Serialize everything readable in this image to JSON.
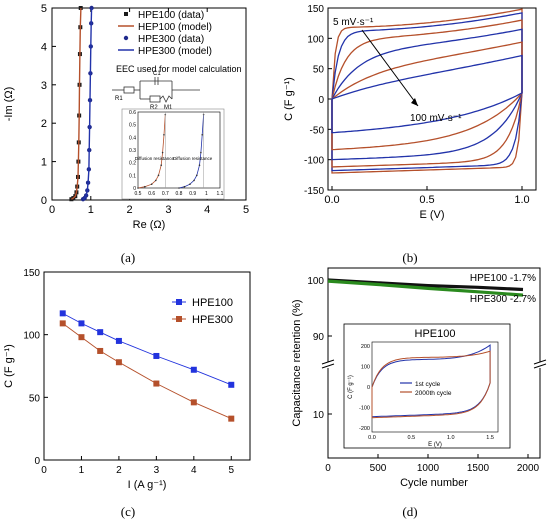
{
  "chart_data": [
    {
      "panel": "(a)",
      "type": "scatter",
      "xlabel": "Re (Ω)",
      "ylabel": "-Im (Ω)",
      "xlim": [
        0,
        5
      ],
      "ylim": [
        0,
        5
      ],
      "xticks": [
        "0",
        "1",
        "2",
        "3",
        "4",
        "5"
      ],
      "yticks": [
        "0",
        "1",
        "2",
        "3",
        "4",
        "5"
      ],
      "legend_position": "top-right",
      "series": [
        {
          "name": "HPE100 (data)",
          "color": "#1a1a1a",
          "marker": "square",
          "x": [
            0.5,
            0.55,
            0.6,
            0.63,
            0.65,
            0.67,
            0.68,
            0.69,
            0.7,
            0.71,
            0.72,
            0.73,
            0.74
          ],
          "y": [
            0.02,
            0.05,
            0.1,
            0.2,
            0.35,
            0.6,
            1.0,
            1.5,
            2.2,
            3.0,
            3.8,
            4.5,
            5.0
          ]
        },
        {
          "name": "HEP100 (model)",
          "color": "#b5502b",
          "marker": "line",
          "x": [
            0.5,
            0.55,
            0.6,
            0.63,
            0.65,
            0.67,
            0.68,
            0.69,
            0.7,
            0.71,
            0.72,
            0.73,
            0.745
          ],
          "y": [
            0.02,
            0.05,
            0.1,
            0.2,
            0.35,
            0.6,
            1.0,
            1.5,
            2.2,
            3.0,
            3.8,
            4.5,
            5.0
          ]
        },
        {
          "name": "HPE300 (data)",
          "color": "#1f2a8c",
          "marker": "circle",
          "x": [
            0.8,
            0.84,
            0.88,
            0.91,
            0.93,
            0.95,
            0.96,
            0.97,
            0.98,
            0.99,
            1.0,
            1.01,
            1.02
          ],
          "y": [
            0.02,
            0.05,
            0.12,
            0.25,
            0.45,
            0.8,
            1.3,
            1.9,
            2.6,
            3.3,
            4.0,
            4.6,
            5.0
          ]
        },
        {
          "name": "HPE300 (model)",
          "color": "#2233aa",
          "marker": "line",
          "x": [
            0.8,
            0.84,
            0.88,
            0.91,
            0.93,
            0.95,
            0.96,
            0.97,
            0.98,
            0.99,
            1.0,
            1.01,
            1.02
          ],
          "y": [
            0.02,
            0.05,
            0.12,
            0.25,
            0.45,
            0.8,
            1.3,
            1.9,
            2.6,
            3.3,
            4.0,
            4.6,
            5.0
          ]
        }
      ],
      "annotation": "EEC used for model calculation",
      "circuit_labels": [
        "R1",
        "C1",
        "R2",
        "M1"
      ],
      "inset": {
        "xticks": [
          "0.5",
          "0.6",
          "0.7",
          "0.8",
          "0.9",
          "1",
          "1.1"
        ],
        "yticks": [
          "0",
          "0.1",
          "0.2",
          "0.3",
          "0.4",
          "0.5",
          "0.6"
        ],
        "xlim": [
          0.5,
          1.1
        ],
        "ylim": [
          0,
          0.6
        ],
        "labels": [
          "Diffusion resistance",
          "Diffusion resistance"
        ],
        "series": [
          {
            "color": "#b5502b",
            "x": [
              0.5,
              0.55,
              0.6,
              0.63,
              0.65,
              0.67,
              0.68,
              0.69,
              0.7
            ],
            "y": [
              0.0,
              0.01,
              0.03,
              0.06,
              0.1,
              0.18,
              0.28,
              0.42,
              0.58
            ]
          },
          {
            "color": "#2233aa",
            "x": [
              0.8,
              0.84,
              0.88,
              0.91,
              0.93,
              0.95,
              0.96,
              0.97,
              0.98
            ],
            "y": [
              0.0,
              0.01,
              0.03,
              0.06,
              0.1,
              0.18,
              0.28,
              0.42,
              0.58
            ]
          }
        ]
      }
    },
    {
      "panel": "(b)",
      "type": "line",
      "xlabel": "E (V)",
      "ylabel": "C (F g⁻¹)",
      "xlim": [
        0,
        1.0
      ],
      "ylim": [
        -150,
        150
      ],
      "xticks": [
        "0.0",
        "0.5",
        "1.0"
      ],
      "yticks": [
        "-150",
        "-100",
        "-50",
        "0",
        "50",
        "100",
        "150"
      ],
      "annotations": [
        "5 mV·s⁻¹",
        "100 mV·s⁻¹"
      ],
      "curves": [
        {
          "color": "#b5502b",
          "top": 118,
          "bottom": -122,
          "k": 60
        },
        {
          "color": "#2233aa",
          "top": 112,
          "bottom": -118,
          "k": 30
        },
        {
          "color": "#b5502b",
          "top": 100,
          "bottom": -112,
          "k": 14
        },
        {
          "color": "#2233aa",
          "top": 85,
          "bottom": -100,
          "k": 7
        },
        {
          "color": "#b5502b",
          "top": 65,
          "bottom": -85,
          "k": 4
        },
        {
          "color": "#2233aa",
          "top": 45,
          "bottom": -60,
          "k": 2.6
        }
      ]
    },
    {
      "panel": "(c)",
      "type": "line",
      "xlabel": "I (A g⁻¹)",
      "ylabel": "C (F g⁻¹)",
      "xlim": [
        0,
        5.5
      ],
      "ylim": [
        0,
        150
      ],
      "xticks": [
        "0",
        "1",
        "2",
        "3",
        "4",
        "5"
      ],
      "yticks": [
        "0",
        "50",
        "100",
        "150"
      ],
      "legend_position": "top-right",
      "x": [
        0.5,
        1,
        1.5,
        2,
        3,
        4,
        5
      ],
      "series": [
        {
          "name": "HPE100",
          "color": "#2233dd",
          "marker": "square",
          "values": [
            117,
            109,
            102,
            95,
            83,
            72,
            60
          ]
        },
        {
          "name": "HPE300",
          "color": "#b5502b",
          "marker": "square",
          "values": [
            109,
            98,
            87,
            78,
            61,
            46,
            33
          ]
        }
      ]
    },
    {
      "panel": "(d)",
      "type": "line",
      "xlabel": "Cycle number",
      "ylabel": "Capacitance retention (%)",
      "xlim": [
        0,
        2000
      ],
      "xticks": [
        "0",
        "500",
        "1000",
        "1500",
        "2000"
      ],
      "yticks": [
        "10",
        "90",
        "100"
      ],
      "series": [
        {
          "name": "HPE100",
          "label": "HPE100  -1.7%",
          "color": "#111111",
          "x": [
            0,
            500,
            1000,
            1500,
            1950
          ],
          "values": [
            100,
            99.5,
            99.0,
            98.7,
            98.3
          ]
        },
        {
          "name": "HPE300",
          "label": "HPE300  -2.7%",
          "color": "#2a8a1e",
          "x": [
            0,
            500,
            1000,
            1500,
            1950
          ],
          "values": [
            99.8,
            99.2,
            98.5,
            97.9,
            97.3
          ]
        }
      ],
      "inset": {
        "title": "HPE100",
        "xlabel": "E (V)",
        "ylabel": "C (F g⁻¹)",
        "xticks": [
          "0.0",
          "0.5",
          "1.0",
          "1.5"
        ],
        "yticks": [
          "-200",
          "-100",
          "0",
          "100",
          "200"
        ],
        "legend": [
          "1st cycle",
          "2000th cycle"
        ],
        "legend_colors": [
          "#2233aa",
          "#b5502b"
        ]
      }
    }
  ],
  "captions": [
    "(a)",
    "(b)",
    "(c)",
    "(d)"
  ]
}
